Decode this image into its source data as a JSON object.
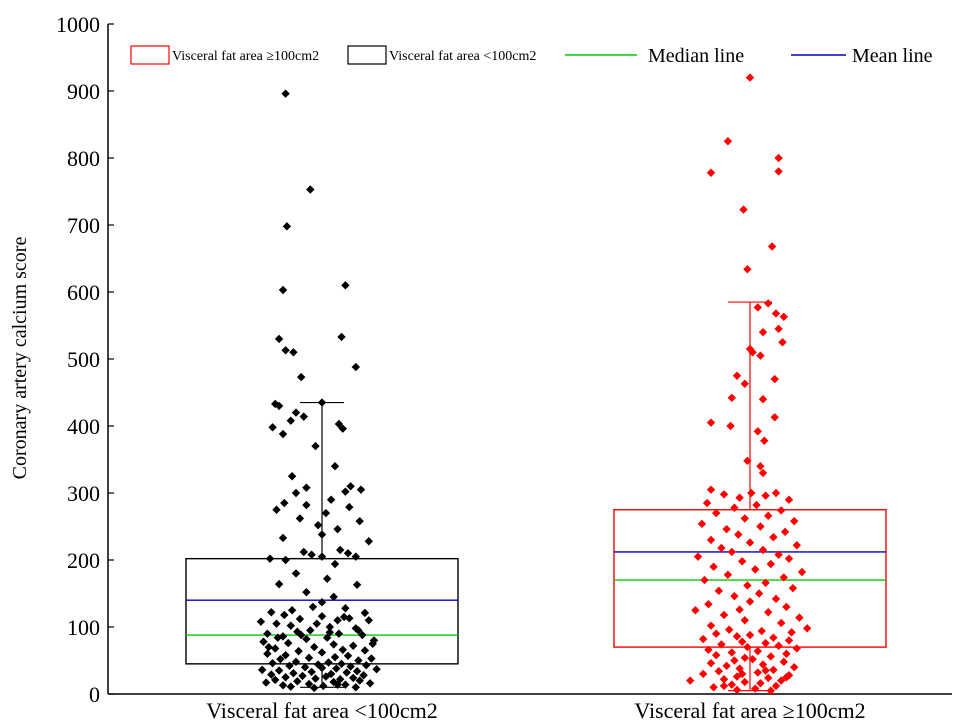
{
  "chart_data": {
    "type": "scatter",
    "ylabel": "Coronary artery calcium score",
    "ylim": [
      0,
      1000
    ],
    "yticks": [
      0,
      100,
      200,
      300,
      400,
      500,
      600,
      700,
      800,
      900,
      1000
    ],
    "categories": [
      "Visceral fat area <100cm2",
      "Visceral fat area ≥100cm2"
    ],
    "legend_position": "top",
    "legend": [
      {
        "label": "Visceral fat area ≥100cm2",
        "kind": "box",
        "color": "#ff0000"
      },
      {
        "label": "Visceral fat area <100cm2",
        "kind": "box",
        "color": "#000000"
      },
      {
        "label": "Median line",
        "kind": "line",
        "color": "#00cc00"
      },
      {
        "label": "Mean line",
        "kind": "line",
        "color": "#0000cc"
      }
    ],
    "series": [
      {
        "name": "Visceral fat area <100cm2",
        "color": "#000000",
        "box": {
          "q1": 45,
          "median": 88,
          "mean": 140,
          "q3": 202,
          "whisker_low": 10,
          "whisker_high": 435
        },
        "points": [
          [
            -0.28,
            896
          ],
          [
            -0.09,
            753
          ],
          [
            -0.27,
            698
          ],
          [
            0.18,
            610
          ],
          [
            -0.3,
            603
          ],
          [
            0.15,
            533
          ],
          [
            -0.33,
            530
          ],
          [
            -0.28,
            513
          ],
          [
            -0.22,
            510
          ],
          [
            0.26,
            488
          ],
          [
            -0.16,
            473
          ],
          [
            -0.36,
            433
          ],
          [
            -0.33,
            430
          ],
          [
            0.0,
            435
          ],
          [
            -0.2,
            420
          ],
          [
            -0.14,
            414
          ],
          [
            -0.24,
            408
          ],
          [
            0.13,
            403
          ],
          [
            -0.38,
            398
          ],
          [
            0.16,
            396
          ],
          [
            -0.3,
            388
          ],
          [
            -0.05,
            370
          ],
          [
            0.1,
            340
          ],
          [
            -0.23,
            325
          ],
          [
            0.22,
            310
          ],
          [
            -0.12,
            308
          ],
          [
            0.18,
            302
          ],
          [
            -0.2,
            300
          ],
          [
            0.3,
            305
          ],
          [
            0.07,
            290
          ],
          [
            -0.29,
            285
          ],
          [
            -0.12,
            282
          ],
          [
            0.21,
            279
          ],
          [
            -0.35,
            275
          ],
          [
            0.03,
            270
          ],
          [
            -0.17,
            262
          ],
          [
            0.29,
            258
          ],
          [
            -0.03,
            252
          ],
          [
            0.12,
            246
          ],
          [
            0.0,
            238
          ],
          [
            -0.3,
            233
          ],
          [
            0.36,
            228
          ],
          [
            0.14,
            215
          ],
          [
            -0.14,
            212
          ],
          [
            0.2,
            210
          ],
          [
            -0.08,
            208
          ],
          [
            0.0,
            205
          ],
          [
            -0.4,
            202
          ],
          [
            0.26,
            205
          ],
          [
            -0.28,
            200
          ],
          [
            0.1,
            194
          ],
          [
            -0.2,
            180
          ],
          [
            0.04,
            172
          ],
          [
            -0.33,
            164
          ],
          [
            0.27,
            163
          ],
          [
            -0.12,
            152
          ],
          [
            0.09,
            145
          ],
          [
            0.0,
            137
          ],
          [
            -0.07,
            130
          ],
          [
            0.18,
            128
          ],
          [
            0.33,
            121
          ],
          [
            -0.39,
            122
          ],
          [
            -0.29,
            118
          ],
          [
            0.0,
            116
          ],
          [
            0.21,
            113
          ],
          [
            -0.17,
            112
          ],
          [
            0.12,
            110
          ],
          [
            -0.47,
            108
          ],
          [
            -0.35,
            105
          ],
          [
            -0.24,
            102
          ],
          [
            0.06,
            100
          ],
          [
            0.26,
            98
          ],
          [
            -0.09,
            95
          ],
          [
            -0.19,
            93
          ],
          [
            -0.42,
            90
          ],
          [
            0.13,
            90
          ],
          [
            0.31,
            88
          ],
          [
            -0.3,
            86
          ],
          [
            0.04,
            84
          ],
          [
            -0.12,
            82
          ],
          [
            0.4,
            80
          ],
          [
            -0.45,
            78
          ],
          [
            -0.26,
            76
          ],
          [
            0.09,
            74
          ],
          [
            0.24,
            72
          ],
          [
            -0.06,
            70
          ],
          [
            -0.36,
            68
          ],
          [
            0.16,
            66
          ],
          [
            0.33,
            65
          ],
          [
            -0.18,
            64
          ],
          [
            0.0,
            62
          ],
          [
            -0.42,
            60
          ],
          [
            -0.28,
            58
          ],
          [
            0.2,
            57
          ],
          [
            0.1,
            55
          ],
          [
            -0.1,
            54
          ],
          [
            0.38,
            53
          ],
          [
            -0.32,
            52
          ],
          [
            0.28,
            50
          ],
          [
            -0.2,
            48
          ],
          [
            0.05,
            47
          ],
          [
            -0.38,
            46
          ],
          [
            0.15,
            45
          ],
          [
            -0.03,
            44
          ],
          [
            0.34,
            43
          ],
          [
            -0.25,
            42
          ],
          [
            0.22,
            41
          ],
          [
            -0.13,
            40
          ],
          [
            0.0,
            39
          ],
          [
            0.11,
            38
          ],
          [
            -0.46,
            36
          ],
          [
            0.42,
            37
          ],
          [
            -0.33,
            35
          ],
          [
            0.27,
            34
          ],
          [
            -0.08,
            33
          ],
          [
            0.19,
            32
          ],
          [
            -0.22,
            31
          ],
          [
            0.07,
            30
          ],
          [
            -0.39,
            29
          ],
          [
            0.32,
            28
          ],
          [
            -0.15,
            27
          ],
          [
            0.03,
            26
          ],
          [
            -0.28,
            25
          ],
          [
            0.24,
            24
          ],
          [
            -0.05,
            23
          ],
          [
            0.14,
            22
          ],
          [
            -0.36,
            21
          ],
          [
            0.29,
            20
          ],
          [
            -0.19,
            19
          ],
          [
            0.09,
            18
          ],
          [
            -0.43,
            17
          ],
          [
            0.37,
            16
          ],
          [
            -0.1,
            15
          ],
          [
            0.18,
            14
          ],
          [
            -0.3,
            13
          ],
          [
            0.01,
            12
          ],
          [
            -0.24,
            11
          ],
          [
            0.26,
            10
          ],
          [
            -0.06,
            9
          ],
          [
            0.12,
            14
          ],
          [
            -0.41,
            70
          ],
          [
            0.39,
            75
          ],
          [
            -0.34,
            84
          ],
          [
            0.36,
            110
          ],
          [
            -0.23,
            125
          ],
          [
            0.28,
            95
          ],
          [
            -0.04,
            105
          ],
          [
            0.17,
            115
          ],
          [
            -0.16,
            88
          ],
          [
            0.06,
            92
          ]
        ]
      },
      {
        "name": "Visceral fat area ≥100cm2",
        "color": "#ff0000",
        "box": {
          "q1": 70,
          "median": 170,
          "mean": 212,
          "q3": 275,
          "whisker_low": 5,
          "whisker_high": 585
        },
        "points": [
          [
            0.0,
            920
          ],
          [
            -0.17,
            825
          ],
          [
            0.22,
            800
          ],
          [
            -0.3,
            778
          ],
          [
            0.22,
            780
          ],
          [
            -0.05,
            723
          ],
          [
            0.17,
            668
          ],
          [
            -0.02,
            634
          ],
          [
            0.14,
            583
          ],
          [
            0.06,
            577
          ],
          [
            0.2,
            568
          ],
          [
            0.26,
            563
          ],
          [
            0.22,
            545
          ],
          [
            0.1,
            540
          ],
          [
            0.0,
            515
          ],
          [
            0.02,
            510
          ],
          [
            0.25,
            525
          ],
          [
            0.08,
            505
          ],
          [
            -0.1,
            475
          ],
          [
            0.19,
            470
          ],
          [
            -0.04,
            463
          ],
          [
            -0.14,
            442
          ],
          [
            0.1,
            440
          ],
          [
            0.19,
            413
          ],
          [
            -0.3,
            405
          ],
          [
            -0.15,
            400
          ],
          [
            0.06,
            392
          ],
          [
            0.11,
            378
          ],
          [
            -0.02,
            348
          ],
          [
            0.08,
            340
          ],
          [
            0.1,
            330
          ],
          [
            -0.3,
            305
          ],
          [
            0.2,
            300
          ],
          [
            0.01,
            300
          ],
          [
            -0.2,
            298
          ],
          [
            0.12,
            296
          ],
          [
            -0.08,
            293
          ],
          [
            0.3,
            290
          ],
          [
            -0.33,
            285
          ],
          [
            0.05,
            282
          ],
          [
            -0.12,
            278
          ],
          [
            0.24,
            274
          ],
          [
            -0.26,
            270
          ],
          [
            0.14,
            266
          ],
          [
            -0.04,
            262
          ],
          [
            0.34,
            258
          ],
          [
            -0.37,
            254
          ],
          [
            0.08,
            250
          ],
          [
            -0.18,
            246
          ],
          [
            0.27,
            242
          ],
          [
            -0.09,
            238
          ],
          [
            0.18,
            234
          ],
          [
            -0.3,
            230
          ],
          [
            0.0,
            226
          ],
          [
            0.36,
            222
          ],
          [
            -0.22,
            218
          ],
          [
            0.1,
            215
          ],
          [
            -0.14,
            212
          ],
          [
            0.22,
            208
          ],
          [
            -0.4,
            205
          ],
          [
            0.3,
            202
          ],
          [
            -0.06,
            198
          ],
          [
            0.16,
            194
          ],
          [
            -0.28,
            190
          ],
          [
            0.04,
            186
          ],
          [
            0.4,
            182
          ],
          [
            -0.17,
            178
          ],
          [
            0.26,
            174
          ],
          [
            -0.35,
            170
          ],
          [
            0.12,
            166
          ],
          [
            -0.02,
            162
          ],
          [
            0.33,
            158
          ],
          [
            -0.24,
            154
          ],
          [
            0.07,
            150
          ],
          [
            -0.12,
            146
          ],
          [
            0.2,
            142
          ],
          [
            -0.42,
            125
          ],
          [
            0.0,
            138
          ],
          [
            -0.32,
            134
          ],
          [
            0.28,
            130
          ],
          [
            -0.08,
            126
          ],
          [
            0.14,
            122
          ],
          [
            -0.2,
            118
          ],
          [
            0.38,
            114
          ],
          [
            -0.04,
            110
          ],
          [
            0.24,
            106
          ],
          [
            -0.3,
            102
          ],
          [
            0.44,
            98
          ],
          [
            -0.16,
            96
          ],
          [
            0.09,
            94
          ],
          [
            0.32,
            92
          ],
          [
            -0.26,
            90
          ],
          [
            0.0,
            88
          ],
          [
            -0.1,
            86
          ],
          [
            0.18,
            84
          ],
          [
            -0.36,
            82
          ],
          [
            0.3,
            80
          ],
          [
            -0.06,
            78
          ],
          [
            0.12,
            76
          ],
          [
            -0.22,
            74
          ],
          [
            0.22,
            72
          ],
          [
            -0.02,
            70
          ],
          [
            0.36,
            68
          ],
          [
            -0.32,
            66
          ],
          [
            0.06,
            64
          ],
          [
            -0.14,
            62
          ],
          [
            0.28,
            60
          ],
          [
            -0.26,
            58
          ],
          [
            0.16,
            56
          ],
          [
            -0.04,
            54
          ],
          [
            0.02,
            52
          ],
          [
            -0.12,
            50
          ],
          [
            0.26,
            48
          ],
          [
            -0.3,
            46
          ],
          [
            0.1,
            44
          ],
          [
            -0.18,
            42
          ],
          [
            0.34,
            40
          ],
          [
            -0.08,
            38
          ],
          [
            0.18,
            36
          ],
          [
            -0.24,
            34
          ],
          [
            0.06,
            32
          ],
          [
            -0.36,
            30
          ],
          [
            0.3,
            28
          ],
          [
            -0.1,
            26
          ],
          [
            0.14,
            24
          ],
          [
            -0.2,
            22
          ],
          [
            0.24,
            20
          ],
          [
            -0.04,
            18
          ],
          [
            0.08,
            16
          ],
          [
            -0.14,
            14
          ],
          [
            0.2,
            12
          ],
          [
            -0.28,
            10
          ],
          [
            0.04,
            8
          ],
          [
            -0.1,
            6
          ],
          [
            0.16,
            5
          ],
          [
            -0.46,
            20
          ],
          [
            0.28,
            25
          ],
          [
            -0.06,
            30
          ],
          [
            0.12,
            35
          ],
          [
            -0.2,
            12
          ]
        ]
      }
    ]
  }
}
